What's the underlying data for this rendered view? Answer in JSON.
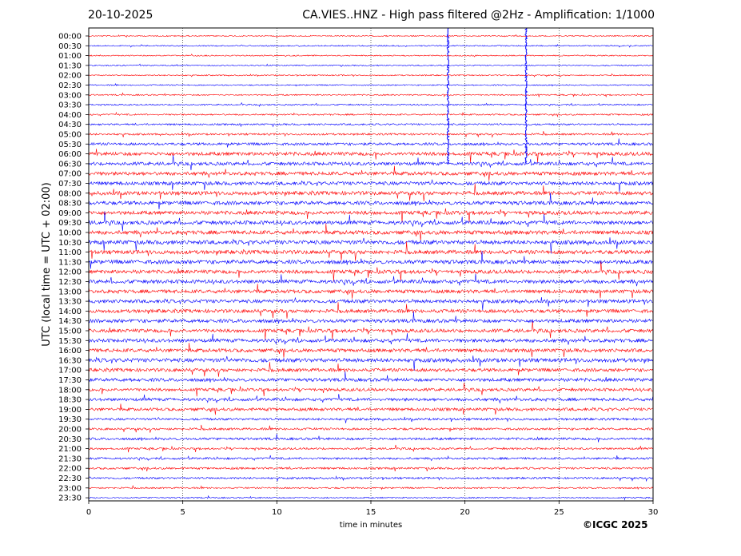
{
  "header": {
    "date": "20-10-2025",
    "title": "CA.VIES..HNZ - High pass filtered @2Hz - Amplification: 1/1000"
  },
  "credit": "©ICGC 2025",
  "colors": {
    "odd_trace": "#ff0000",
    "even_trace": "#0000ff",
    "frame": "#000000",
    "grid": "#000000"
  },
  "chart_data": {
    "type": "line",
    "title": "CA.VIES..HNZ - High pass filtered @2Hz - Amplification: 1/1000",
    "xlabel": "time in minutes",
    "ylabel": "UTC (local time = UTC + 02:00)",
    "xlim": [
      0,
      30
    ],
    "xticks": [
      0,
      5,
      10,
      15,
      20,
      25,
      30
    ],
    "grid": "vertical dotted lines at 5-minute ticks",
    "rows": [
      {
        "label": "00:00",
        "activity": 0.06
      },
      {
        "label": "00:30",
        "activity": 0.05
      },
      {
        "label": "01:00",
        "activity": 0.05
      },
      {
        "label": "01:30",
        "activity": 0.05
      },
      {
        "label": "02:00",
        "activity": 0.05
      },
      {
        "label": "02:30",
        "activity": 0.06
      },
      {
        "label": "03:00",
        "activity": 0.1
      },
      {
        "label": "03:30",
        "activity": 0.12
      },
      {
        "label": "04:00",
        "activity": 0.15
      },
      {
        "label": "04:30",
        "activity": 0.2
      },
      {
        "label": "05:00",
        "activity": 0.25
      },
      {
        "label": "05:30",
        "activity": 0.45
      },
      {
        "label": "06:00",
        "activity": 0.7
      },
      {
        "label": "06:30",
        "activity": 0.65
      },
      {
        "label": "07:00",
        "activity": 0.7
      },
      {
        "label": "07:30",
        "activity": 0.7
      },
      {
        "label": "08:00",
        "activity": 0.75
      },
      {
        "label": "08:30",
        "activity": 0.75
      },
      {
        "label": "09:00",
        "activity": 0.75
      },
      {
        "label": "09:30",
        "activity": 0.8
      },
      {
        "label": "10:00",
        "activity": 0.8
      },
      {
        "label": "10:30",
        "activity": 0.85
      },
      {
        "label": "11:00",
        "activity": 0.8
      },
      {
        "label": "11:30",
        "activity": 0.8
      },
      {
        "label": "12:00",
        "activity": 0.75
      },
      {
        "label": "12:30",
        "activity": 0.75
      },
      {
        "label": "13:00",
        "activity": 0.7
      },
      {
        "label": "13:30",
        "activity": 0.7
      },
      {
        "label": "14:00",
        "activity": 0.7
      },
      {
        "label": "14:30",
        "activity": 0.7
      },
      {
        "label": "15:00",
        "activity": 0.7
      },
      {
        "label": "15:30",
        "activity": 0.7
      },
      {
        "label": "16:00",
        "activity": 0.7
      },
      {
        "label": "16:30",
        "activity": 0.8
      },
      {
        "label": "17:00",
        "activity": 0.65
      },
      {
        "label": "17:30",
        "activity": 0.65
      },
      {
        "label": "18:00",
        "activity": 0.55
      },
      {
        "label": "18:30",
        "activity": 0.55
      },
      {
        "label": "19:00",
        "activity": 0.55
      },
      {
        "label": "19:30",
        "activity": 0.35
      },
      {
        "label": "20:00",
        "activity": 0.35
      },
      {
        "label": "20:30",
        "activity": 0.4
      },
      {
        "label": "21:00",
        "activity": 0.3
      },
      {
        "label": "21:30",
        "activity": 0.3
      },
      {
        "label": "22:00",
        "activity": 0.3
      },
      {
        "label": "22:30",
        "activity": 0.25
      },
      {
        "label": "23:00",
        "activity": 0.15
      },
      {
        "label": "23:30",
        "activity": 0.1
      }
    ],
    "large_spikes": [
      {
        "row_from": "00:00",
        "row_to": "06:30",
        "x": 19.1
      },
      {
        "row_from": "00:00",
        "row_to": "06:30",
        "x": 23.25
      }
    ]
  }
}
